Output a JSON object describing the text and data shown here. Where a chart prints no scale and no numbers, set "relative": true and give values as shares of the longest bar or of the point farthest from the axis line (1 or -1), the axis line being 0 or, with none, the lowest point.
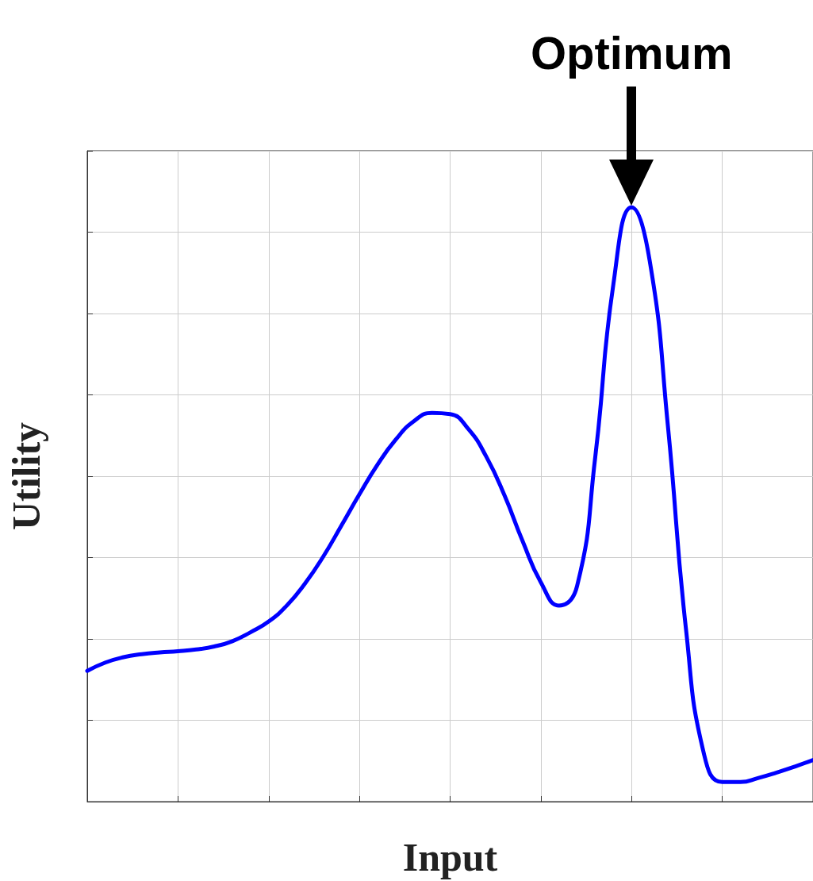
{
  "chart_data": {
    "type": "line",
    "relative": true,
    "xlabel": "Input",
    "ylabel": "Utility",
    "grid": true,
    "marker": "none",
    "line_style": "solid",
    "annotations": [
      {
        "text": "Optimum",
        "y": 1.0
      }
    ],
    "categories": [
      null,
      null,
      null,
      null,
      null,
      null,
      null,
      null,
      null,
      null,
      null,
      null,
      null,
      null,
      null,
      null,
      null,
      null,
      null,
      null,
      null,
      null,
      null,
      null,
      null,
      null,
      null,
      null,
      null,
      null,
      null,
      null,
      null,
      null,
      null,
      null,
      null,
      null,
      null,
      null,
      null
    ],
    "series": [
      {
        "color": "#0000ff",
        "values": [
          0.22,
          0.234,
          0.243,
          0.248,
          0.251,
          0.253,
          0.256,
          0.261,
          0.27,
          0.285,
          0.303,
          0.33,
          0.367,
          0.412,
          0.464,
          0.517,
          0.567,
          0.609,
          0.64,
          0.654,
          0.652,
          0.627,
          0.58,
          0.515,
          0.438,
          0.369,
          0.33,
          0.363,
          0.58,
          0.871,
          1.0,
          0.91,
          0.633,
          0.29,
          0.079,
          0.033,
          0.033,
          0.04,
          0.049,
          0.059,
          0.07
        ]
      }
    ]
  }
}
